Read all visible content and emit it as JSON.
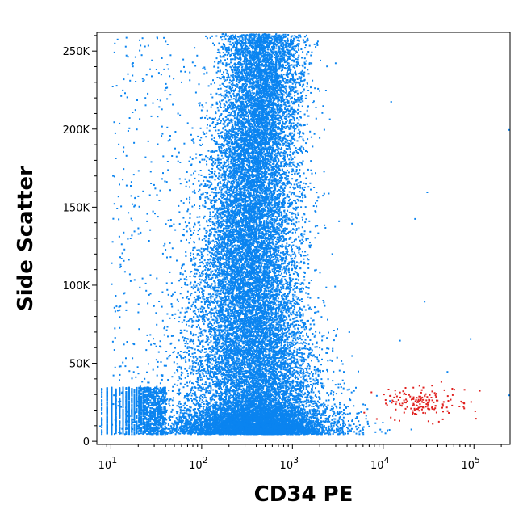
{
  "chart_data": {
    "type": "scatter",
    "title": "",
    "xlabel": "CD34 PE",
    "ylabel": "Side Scatter",
    "x_scale": "log",
    "y_scale": "linear",
    "xlim": [
      7,
      250000
    ],
    "ylim": [
      -2000,
      262000
    ],
    "grid": false,
    "legend": "none",
    "x_ticks": [
      {
        "value": 10,
        "base": "10",
        "exp": "1"
      },
      {
        "value": 100,
        "base": "10",
        "exp": "2"
      },
      {
        "value": 1000,
        "base": "10",
        "exp": "3"
      },
      {
        "value": 10000,
        "base": "10",
        "exp": "4"
      },
      {
        "value": 100000,
        "base": "10",
        "exp": "5"
      }
    ],
    "y_ticks": [
      {
        "value": 0,
        "label": "0"
      },
      {
        "value": 50000,
        "label": "50K"
      },
      {
        "value": 100000,
        "label": "100K"
      },
      {
        "value": 150000,
        "label": "150K"
      },
      {
        "value": 200000,
        "label": "200K"
      },
      {
        "value": 250000,
        "label": "250K"
      }
    ],
    "series": [
      {
        "color": "#0a84f0",
        "count": 26000,
        "main_population": {
          "x_center": 450,
          "x_log_sd": 0.22,
          "y_min": 5000,
          "y_max": 262000
        },
        "low_band": {
          "x_min": 8,
          "x_max": 40,
          "y_min": 5000,
          "y_max": 35000
        }
      },
      {
        "color": "#e0201e",
        "count": 170,
        "x_center": 25000,
        "x_log_sd": 0.25,
        "y_center": 25000,
        "y_sd": 5000
      }
    ]
  }
}
